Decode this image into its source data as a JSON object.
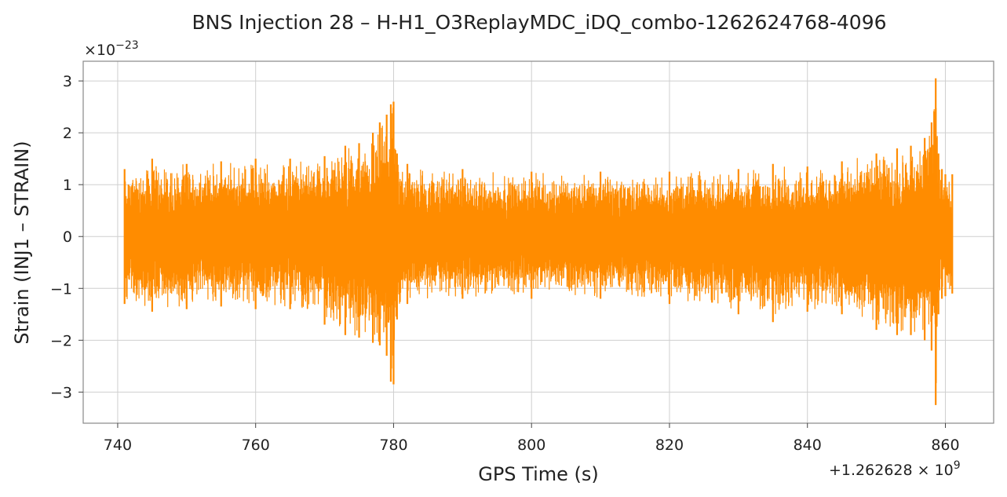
{
  "chart_data": {
    "type": "line",
    "title": "BNS Injection 28 – H-H1_O3ReplayMDC_iDQ_combo-1262624768-4096",
    "xlabel": "GPS Time (s)",
    "ylabel": "Strain (INJ1 – STRAIN)",
    "x_offset_label": "+1.262628",
    "x_offset_exponent": "9",
    "y_scale_label": "×10",
    "y_scale_exponent": "−23",
    "xlim": [
      735,
      867
    ],
    "ylim": [
      -3.6,
      3.38
    ],
    "xticks": [
      740,
      760,
      780,
      800,
      820,
      840,
      860
    ],
    "xtick_labels": [
      "740",
      "760",
      "780",
      "800",
      "820",
      "840",
      "860"
    ],
    "yticks": [
      -3,
      -2,
      -1,
      0,
      1,
      2,
      3
    ],
    "ytick_labels": [
      "−3",
      "−2",
      "−1",
      "0",
      "1",
      "2",
      "3"
    ],
    "grid": true,
    "series": [
      {
        "color": "#ff8c00",
        "x_start": 741,
        "x_end": 861,
        "envelope": {
          "x": [
            741,
            745,
            750,
            755,
            760,
            765,
            770,
            773,
            775,
            777,
            778,
            779,
            779.6,
            780,
            780.5,
            782,
            790,
            800,
            810,
            820,
            830,
            835,
            840,
            845,
            850,
            853,
            855,
            857,
            858,
            858.6,
            859,
            859.5,
            860,
            861
          ],
          "upper": [
            1.3,
            1.5,
            1.4,
            1.45,
            1.5,
            1.5,
            1.55,
            1.75,
            1.8,
            2.0,
            2.2,
            2.35,
            2.55,
            2.6,
            1.6,
            1.4,
            1.3,
            1.25,
            1.25,
            1.25,
            1.3,
            1.4,
            1.35,
            1.45,
            1.6,
            1.7,
            1.75,
            1.9,
            2.2,
            3.05,
            1.6,
            1.3,
            1.2,
            1.2
          ],
          "lower": [
            -1.3,
            -1.45,
            -1.4,
            -1.35,
            -1.4,
            -1.4,
            -1.7,
            -1.9,
            -1.95,
            -2.05,
            -2.1,
            -2.3,
            -2.8,
            -2.85,
            -1.6,
            -1.3,
            -1.2,
            -1.2,
            -1.2,
            -1.3,
            -1.5,
            -1.65,
            -1.45,
            -1.5,
            -1.8,
            -1.9,
            -1.9,
            -2.0,
            -2.2,
            -3.25,
            -1.5,
            -1.2,
            -1.15,
            -1.1
          ]
        }
      }
    ]
  }
}
